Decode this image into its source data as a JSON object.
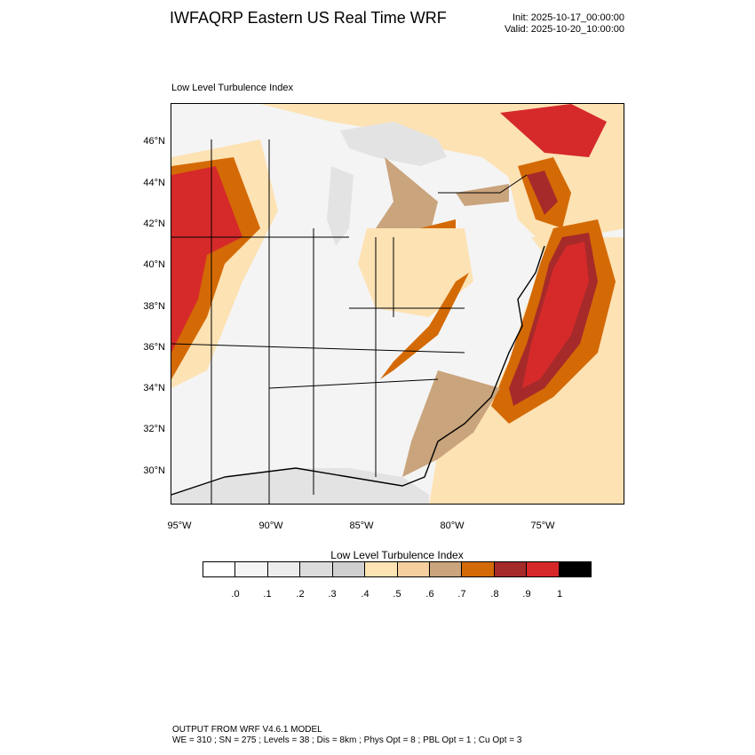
{
  "header": {
    "title": "IWFAQRP Eastern US Real Time WRF",
    "init": "Init: 2025-10-17_00:00:00",
    "valid": "Valid: 2025-10-20_10:00:00"
  },
  "panel": {
    "title": "Low Level Turbulence Index"
  },
  "map": {
    "lat_labels": [
      "46°N",
      "44°N",
      "42°N",
      "40°N",
      "38°N",
      "36°N",
      "34°N",
      "32°N",
      "30°N"
    ],
    "lon_labels": [
      "95°W",
      "90°W",
      "85°W",
      "80°W",
      "75°W"
    ],
    "colors": {
      "land_low": "#f4f4f4",
      "ocean_low": "#e3e3e3",
      "mid_tan": "#fde2b4",
      "light_brown": "#caa67e",
      "orange": "#d46a05",
      "dark_red": "#a72a2a",
      "red": "#d62a2a"
    }
  },
  "colorbar": {
    "title": "Low Level Turbulence Index",
    "labels": [
      ".0",
      ".1",
      ".2",
      ".3",
      ".4",
      ".5",
      ".6",
      ".7",
      ".8",
      ".9",
      "1"
    ],
    "colors": [
      "#ffffff",
      "#f5f5f5",
      "#ececec",
      "#dcdcdc",
      "#cfcfcf",
      "#ffe4b3",
      "#f5cf9e",
      "#c9a47c",
      "#d46a05",
      "#a52a2a",
      "#d62828",
      "#000000"
    ]
  },
  "footer": {
    "line1": "OUTPUT FROM WRF V4.6.1 MODEL",
    "line2": "WE = 310 ; SN = 275 ; Levels = 38 ; Dis = 8km ; Phys Opt = 8 ; PBL Opt = 1 ; Cu Opt = 3"
  }
}
